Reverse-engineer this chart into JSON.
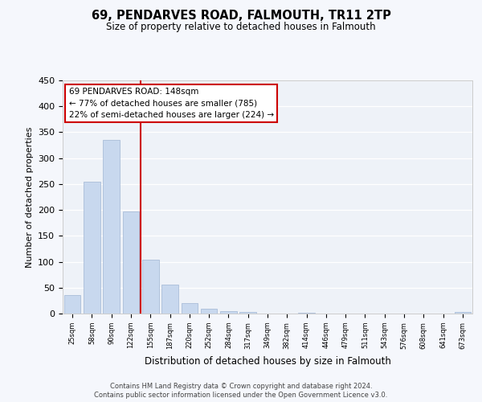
{
  "title": "69, PENDARVES ROAD, FALMOUTH, TR11 2TP",
  "subtitle": "Size of property relative to detached houses in Falmouth",
  "xlabel": "Distribution of detached houses by size in Falmouth",
  "ylabel": "Number of detached properties",
  "bar_color": "#c8d8ee",
  "bar_edge_color": "#aabdd8",
  "plot_bg_color": "#eef2f8",
  "fig_bg_color": "#f5f7fc",
  "grid_color": "#ffffff",
  "tick_labels": [
    "25sqm",
    "58sqm",
    "90sqm",
    "122sqm",
    "155sqm",
    "187sqm",
    "220sqm",
    "252sqm",
    "284sqm",
    "317sqm",
    "349sqm",
    "382sqm",
    "414sqm",
    "446sqm",
    "479sqm",
    "511sqm",
    "543sqm",
    "576sqm",
    "608sqm",
    "641sqm",
    "673sqm"
  ],
  "bar_heights": [
    35,
    255,
    335,
    197,
    104,
    56,
    20,
    10,
    5,
    3,
    0,
    0,
    2,
    0,
    0,
    0,
    0,
    0,
    0,
    0,
    3
  ],
  "ylim": [
    0,
    450
  ],
  "yticks": [
    0,
    50,
    100,
    150,
    200,
    250,
    300,
    350,
    400,
    450
  ],
  "vline_color": "#cc0000",
  "annotation_title": "69 PENDARVES ROAD: 148sqm",
  "annotation_line1": "← 77% of detached houses are smaller (785)",
  "annotation_line2": "22% of semi-detached houses are larger (224) →",
  "annotation_box_color": "#ffffff",
  "annotation_box_edge": "#cc0000",
  "footnote1": "Contains HM Land Registry data © Crown copyright and database right 2024.",
  "footnote2": "Contains public sector information licensed under the Open Government Licence v3.0."
}
